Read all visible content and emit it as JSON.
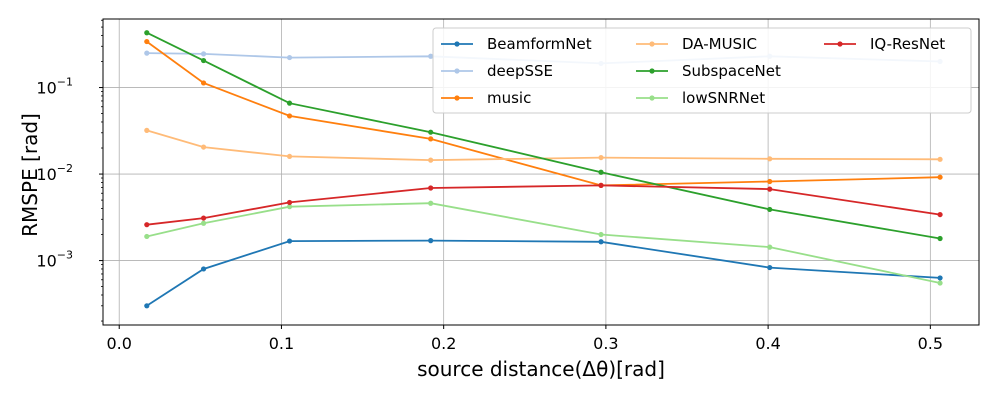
{
  "chart_data": {
    "type": "line",
    "xlabel": "source distance(Δθ)[rad]",
    "ylabel": "RMSPE [rad]",
    "yscale": "log",
    "xlim": [
      -0.01,
      0.53
    ],
    "ylim": [
      0.00018,
      0.62
    ],
    "grid": true,
    "legend_position": "top-right",
    "x_ticks": [
      0.0,
      0.1,
      0.2,
      0.3,
      0.4,
      0.5
    ],
    "x_tick_labels": [
      "0.0",
      "0.1",
      "0.2",
      "0.3",
      "0.4",
      "0.5"
    ],
    "y_ticks": [
      0.001,
      0.01,
      0.1
    ],
    "y_tick_bases": [
      "10",
      "10",
      "10"
    ],
    "y_tick_exponents": [
      "−3",
      "−2",
      "−1"
    ],
    "x": [
      0.017,
      0.052,
      0.105,
      0.192,
      0.297,
      0.401,
      0.506
    ],
    "series": [
      {
        "name": "BeamformNet",
        "color": "#1f77b4",
        "values": [
          0.0003,
          0.0008,
          0.00168,
          0.0017,
          0.00165,
          0.00083,
          0.00063
        ]
      },
      {
        "name": "deepSSE",
        "color": "#aec7e8",
        "values": [
          0.25,
          0.245,
          0.222,
          0.23,
          0.19,
          0.23,
          0.2
        ]
      },
      {
        "name": "music",
        "color": "#ff7f0e",
        "values": [
          0.34,
          0.113,
          0.047,
          0.0255,
          0.0074,
          0.0082,
          0.0092
        ]
      },
      {
        "name": "DA-MUSIC",
        "color": "#ffbb78",
        "values": [
          0.032,
          0.0205,
          0.016,
          0.0145,
          0.0155,
          0.015,
          0.0148
        ]
      },
      {
        "name": "SubspaceNet",
        "color": "#2ca02c",
        "values": [
          0.43,
          0.205,
          0.066,
          0.0305,
          0.0105,
          0.0039,
          0.0018
        ]
      },
      {
        "name": "lowSNRNet",
        "color": "#98df8a",
        "values": [
          0.0019,
          0.0027,
          0.0042,
          0.0046,
          0.002,
          0.00143,
          0.00055
        ]
      },
      {
        "name": "IQ-ResNet",
        "color": "#d62728",
        "values": [
          0.0026,
          0.0031,
          0.0047,
          0.0069,
          0.0074,
          0.0067,
          0.0034
        ]
      }
    ]
  }
}
